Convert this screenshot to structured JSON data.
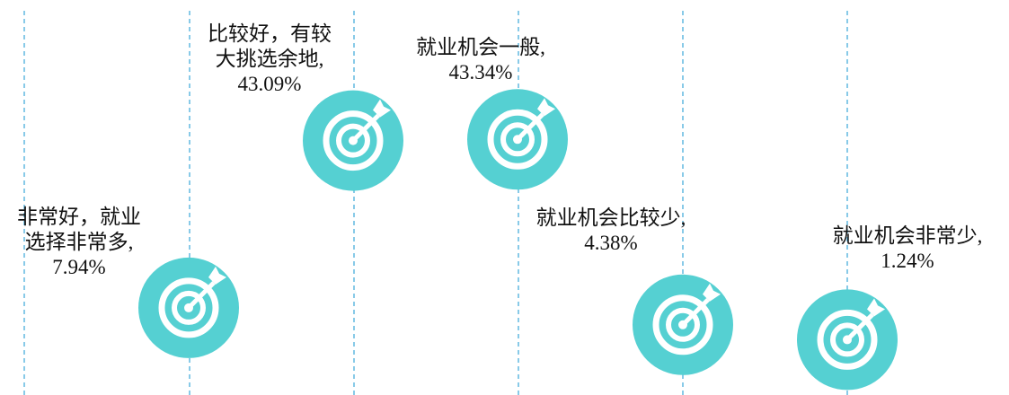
{
  "chart_data": {
    "type": "pictorial",
    "categories": [
      "非常好，就业选择非常多,",
      "比较好，有较大挑选余地,",
      "就业机会一般,",
      "就业机会比较少,",
      "就业机会非常少,"
    ],
    "values": [
      7.94,
      43.09,
      43.34,
      4.38,
      1.24
    ],
    "value_labels": [
      "7.94%",
      "43.09%",
      "43.34%",
      "4.38%",
      "1.24%"
    ],
    "color": "#55d0d2"
  }
}
